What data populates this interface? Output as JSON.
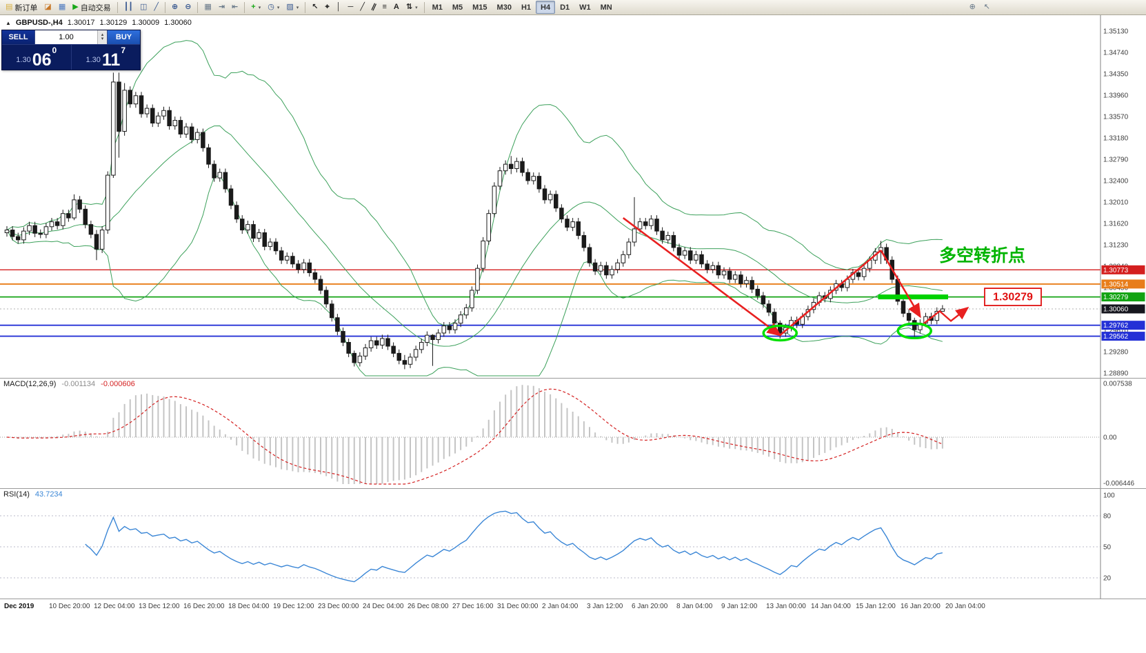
{
  "toolbar": {
    "groups": [
      {
        "name": "standard",
        "items": [
          {
            "name": "new-order-button",
            "icon": "new-order-icon",
            "glyph": "▤",
            "color": "#d8b040",
            "label": "新订单"
          },
          {
            "name": "new-chart-button",
            "icon": "chart-window-icon",
            "glyph": "◪",
            "color": "#c87828"
          },
          {
            "name": "profiles-button",
            "icon": "profiles-icon",
            "glyph": "▦",
            "color": "#4a78c0"
          },
          {
            "name": "autotrading-button",
            "icon": "play-icon",
            "glyph": "▶",
            "color": "#18a818",
            "label": "自动交易"
          }
        ]
      },
      {
        "name": "chart-type",
        "items": [
          {
            "name": "bar-chart-button",
            "icon": "bar-chart-icon",
            "glyph": "┃┃",
            "color": "#385890"
          },
          {
            "name": "candlestick-button",
            "icon": "candlestick-icon",
            "glyph": "◫",
            "color": "#385890"
          },
          {
            "name": "line-chart-button",
            "icon": "line-chart-icon",
            "glyph": "╱",
            "color": "#385890"
          }
        ]
      },
      {
        "name": "zoom",
        "items": [
          {
            "name": "zoom-in-button",
            "icon": "zoom-in-icon",
            "glyph": "⊕",
            "color": "#385890"
          },
          {
            "name": "zoom-out-button",
            "icon": "zoom-out-icon",
            "glyph": "⊖",
            "color": "#385890"
          }
        ]
      },
      {
        "name": "windows",
        "items": [
          {
            "name": "tile-windows-button",
            "icon": "tile-windows-icon",
            "glyph": "▦",
            "color": "#667788"
          },
          {
            "name": "auto-scroll-button",
            "icon": "auto-scroll-icon",
            "glyph": "⇥",
            "color": "#667788"
          },
          {
            "name": "chart-shift-button",
            "icon": "chart-shift-icon",
            "glyph": "⇤",
            "color": "#667788"
          }
        ]
      },
      {
        "name": "indicators",
        "items": [
          {
            "name": "indicators-button",
            "icon": "add-indicator-icon",
            "glyph": "+",
            "color": "#18a818",
            "caret": true
          },
          {
            "name": "periods-button",
            "icon": "clock-icon",
            "glyph": "◷",
            "color": "#385890",
            "caret": true
          },
          {
            "name": "templates-button",
            "icon": "template-icon",
            "glyph": "▨",
            "color": "#385890",
            "caret": true
          }
        ]
      },
      {
        "name": "drawing",
        "items": [
          {
            "name": "cursor-button",
            "icon": "cursor-icon",
            "glyph": "↖",
            "color": "#222"
          },
          {
            "name": "crosshair-button",
            "icon": "crosshair-icon",
            "glyph": "⌖",
            "color": "#222"
          },
          {
            "name": "vertical-line-button",
            "icon": "vertical-line-icon",
            "glyph": "│",
            "color": "#222"
          },
          {
            "name": "horizontal-line-button",
            "icon": "horizontal-line-icon",
            "glyph": "─",
            "color": "#222"
          },
          {
            "name": "trendline-button",
            "icon": "trendline-icon",
            "glyph": "╱",
            "color": "#222"
          },
          {
            "name": "channel-button",
            "icon": "channel-icon",
            "glyph": "∥",
            "color": "#222",
            "tilt": true
          },
          {
            "name": "fibonacci-button",
            "icon": "fibonacci-icon",
            "glyph": "≡",
            "color": "#222"
          },
          {
            "name": "text-button",
            "icon": "text-icon",
            "glyph": "A",
            "color": "#222"
          },
          {
            "name": "arrows-button",
            "icon": "arrow-tools-icon",
            "glyph": "⇅",
            "color": "#222",
            "caret": true
          }
        ]
      },
      {
        "name": "timeframes",
        "items": [
          {
            "name": "timeframe-m1-button",
            "label": "M1"
          },
          {
            "name": "timeframe-m5-button",
            "label": "M5"
          },
          {
            "name": "timeframe-m15-button",
            "label": "M15"
          },
          {
            "name": "timeframe-m30-button",
            "label": "M30"
          },
          {
            "name": "timeframe-h1-button",
            "label": "H1"
          },
          {
            "name": "timeframe-h4-button",
            "label": "H4",
            "active": true
          },
          {
            "name": "timeframe-d1-button",
            "label": "D1"
          },
          {
            "name": "timeframe-w1-button",
            "label": "W1"
          },
          {
            "name": "timeframe-mn-button",
            "label": "MN"
          }
        ]
      }
    ],
    "right_items": [
      {
        "name": "quick-zoom-button",
        "icon": "magnifier-icon",
        "glyph": "⊕",
        "color": "#667788"
      },
      {
        "name": "quick-pointer-button",
        "icon": "pointer-icon",
        "glyph": "↖",
        "color": "#667788"
      }
    ]
  },
  "chart": {
    "symbol_period": "GBPUSD-,H4",
    "ohlc": {
      "open": "1.30017",
      "high": "1.30129",
      "low": "1.30009",
      "close": "1.30060"
    },
    "trade_panel": {
      "sell_label": "SELL",
      "buy_label": "BUY",
      "volume": "1.00",
      "bid_prefix": "1.30",
      "bid_big": "06",
      "bid_sup": "0",
      "ask_prefix": "1.30",
      "ask_big": "11",
      "ask_sup": "7"
    }
  },
  "indicators": {
    "macd": {
      "name": "MACD(12,26,9)",
      "value": "-0.001134",
      "signal": "-0.000606",
      "params": {
        "fast": 12,
        "slow": 26,
        "signal": 9
      },
      "histogram_color": "#c4c4c4",
      "signal_color": "#d42020",
      "axis_labels": [
        {
          "text": "0.007538",
          "value": 0.007538
        },
        {
          "text": "0.00",
          "value": 0
        },
        {
          "text": "-0.006446",
          "value": -0.006446
        }
      ]
    },
    "rsi": {
      "name": "RSI(14)",
      "value": "43.7234",
      "period": 14,
      "line_color": "#3a86d6",
      "levels": [
        80,
        50,
        20
      ],
      "axis_labels": [
        {
          "text": "100",
          "value": 100
        },
        {
          "text": "80",
          "value": 80
        },
        {
          "text": "50",
          "value": 50
        },
        {
          "text": "20",
          "value": 20
        }
      ]
    }
  },
  "chart_data": {
    "type": "candlestick",
    "symbol": "GBPUSD",
    "timeframe": "H4",
    "time_labels": [
      "Dec 2019",
      "10 Dec 20:00",
      "12 Dec 04:00",
      "13 Dec 12:00",
      "16 Dec 20:00",
      "18 Dec 04:00",
      "19 Dec 12:00",
      "23 Dec 00:00",
      "24 Dec 04:00",
      "26 Dec 08:00",
      "27 Dec 16:00",
      "31 Dec 00:00",
      "2 Jan 04:00",
      "3 Jan 12:00",
      "6 Jan 20:00",
      "8 Jan 04:00",
      "9 Jan 12:00",
      "13 Jan 00:00",
      "14 Jan 04:00",
      "15 Jan 12:00",
      "16 Jan 20:00",
      "20 Jan 04:00"
    ],
    "price_axis": {
      "ticks": [
        1.3513,
        1.3474,
        1.3435,
        1.3396,
        1.3357,
        1.3318,
        1.3279,
        1.324,
        1.3201,
        1.3162,
        1.3123,
        1.3084,
        1.3045,
        1.3006,
        1.2967,
        1.2928,
        1.2889
      ]
    },
    "candles": {
      "first_open": 1.3145,
      "default_wick": 0.0007,
      "closes": [
        1.315,
        1.3138,
        1.3132,
        1.3148,
        1.3158,
        1.3144,
        1.3142,
        1.3156,
        1.3165,
        1.3158,
        1.318,
        1.3172,
        1.3205,
        1.3188,
        1.316,
        1.3142,
        1.3115,
        1.315,
        1.325,
        1.342,
        1.333,
        1.3405,
        1.338,
        1.3395,
        1.3362,
        1.3372,
        1.3345,
        1.3358,
        1.3368,
        1.334,
        1.335,
        1.3325,
        1.3338,
        1.3315,
        1.3328,
        1.33,
        1.327,
        1.3245,
        1.3255,
        1.3225,
        1.3195,
        1.317,
        1.315,
        1.316,
        1.3135,
        1.3145,
        1.312,
        1.3128,
        1.3112,
        1.3095,
        1.3102,
        1.3088,
        1.3078,
        1.309,
        1.3072,
        1.306,
        1.304,
        1.3015,
        1.299,
        1.2965,
        1.2945,
        1.2925,
        1.2908,
        1.292,
        1.2935,
        1.2948,
        1.294,
        1.2952,
        1.2938,
        1.2925,
        1.2912,
        1.2905,
        1.2918,
        1.2932,
        1.2945,
        1.2958,
        1.295,
        1.2962,
        1.2975,
        1.2968,
        1.298,
        1.2995,
        1.3008,
        1.304,
        1.308,
        1.313,
        1.318,
        1.323,
        1.3258,
        1.327,
        1.3262,
        1.3275,
        1.3255,
        1.324,
        1.3248,
        1.3225,
        1.3205,
        1.3215,
        1.319,
        1.317,
        1.3155,
        1.3165,
        1.314,
        1.3118,
        1.309,
        1.3075,
        1.3085,
        1.3068,
        1.3078,
        1.309,
        1.3105,
        1.3128,
        1.3152,
        1.3165,
        1.3158,
        1.317,
        1.3148,
        1.3132,
        1.314,
        1.3118,
        1.3104,
        1.3112,
        1.3095,
        1.3105,
        1.3088,
        1.3078,
        1.3085,
        1.3068,
        1.3075,
        1.306,
        1.3068,
        1.3052,
        1.3058,
        1.3042,
        1.303,
        1.3015,
        1.3,
        1.298,
        1.2962,
        1.2972,
        1.2985,
        1.2978,
        1.2992,
        1.3005,
        1.3018,
        1.303,
        1.3025,
        1.304,
        1.3052,
        1.3045,
        1.306,
        1.3072,
        1.3065,
        1.308,
        1.3095,
        1.311,
        1.3118,
        1.3095,
        1.306,
        1.302,
        1.2998,
        1.2985,
        1.2968,
        1.298,
        1.2992,
        1.2985,
        1.30017,
        1.3006
      ],
      "wick_overrides": {
        "12": [
          1.3215,
          1.3168
        ],
        "16": [
          1.315,
          1.3095
        ],
        "19": [
          1.3437,
          1.3245
        ],
        "20": [
          1.3437,
          1.3282
        ],
        "21": [
          1.3418,
          1.3322
        ],
        "62": [
          1.293,
          1.2901
        ],
        "71": [
          1.2922,
          1.2896
        ],
        "76": [
          1.296,
          1.2902
        ],
        "90": [
          1.3285,
          1.3252
        ],
        "112": [
          1.321,
          1.312
        ],
        "138": [
          1.2985,
          1.2952
        ],
        "156": [
          1.313,
          1.3088
        ],
        "162": [
          1.299,
          1.2955
        ],
        "167": [
          1.30129,
          1.30009
        ]
      }
    },
    "bollinger": {
      "period": 20,
      "deviation": 2,
      "color": "#3ba05a"
    },
    "levels": [
      {
        "price": 1.30773,
        "color": "#d41f1f",
        "width": 1.4,
        "label": "1.30773",
        "label_bg": "#d41f1f"
      },
      {
        "price": 1.30514,
        "color": "#e87d1a",
        "width": 1.8,
        "label": "1.30514",
        "label_bg": "#e87d1a"
      },
      {
        "price": 1.30279,
        "color": "#12a312",
        "width": 1.8,
        "label": "1.30279",
        "label_bg": "#12a312"
      },
      {
        "price": 1.29762,
        "color": "#2431d6",
        "width": 1.8,
        "label": "1.29762",
        "label_bg": "#2431d6"
      },
      {
        "price": 1.29562,
        "color": "#2431d6",
        "width": 1.8,
        "label": "1.29562",
        "label_bg": "#2431d6"
      }
    ],
    "bid_line": {
      "price": 1.3006,
      "label": "1.30060",
      "label_bg": "#16161e"
    },
    "annotations": {
      "turning_point_text": {
        "text": "多空转折点",
        "color": "#00b400"
      },
      "price_callout": {
        "text": "1.30279",
        "color": "#e01010"
      },
      "support_bar": {
        "from_idx": 155.5,
        "to_idx": 168,
        "price": 1.30279,
        "color": "#00d200"
      },
      "ellipses": {
        "color": "#00e000",
        "items": [
          {
            "idx": 138,
            "price": 1.2962
          },
          {
            "idx": 162,
            "price": 1.2966
          }
        ]
      },
      "arrows": {
        "color": "#e82020",
        "segments": [
          {
            "from": [
              110,
              1.3172
            ],
            "to": [
              138,
              1.2958
            ],
            "head": true
          },
          {
            "from": [
              138,
              1.2958
            ],
            "to": [
              156,
              1.3113
            ],
            "head": false
          },
          {
            "from": [
              156,
              1.3113
            ],
            "to": [
              163,
              1.2992
            ],
            "head": true
          }
        ],
        "zigzag": [
          [
            163.5,
            1.2978
          ],
          [
            166.5,
            1.3002
          ],
          [
            168.5,
            1.2984
          ],
          [
            171.5,
            1.3008
          ]
        ]
      }
    }
  }
}
